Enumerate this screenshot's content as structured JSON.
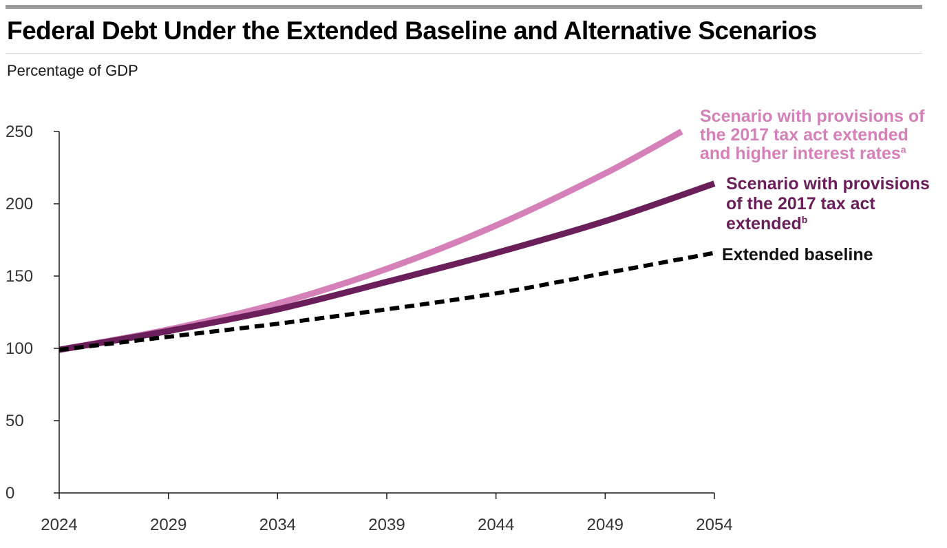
{
  "title": "Federal Debt Under the Extended Baseline and Alternative Scenarios",
  "subtitle": "Percentage of GDP",
  "chart_data": {
    "type": "line",
    "title": "Federal Debt Under the Extended Baseline and Alternative Scenarios",
    "ylabel": "Percentage of GDP",
    "xlabel": "",
    "x": [
      2024,
      2029,
      2034,
      2039,
      2044,
      2049,
      2054
    ],
    "xlim": [
      2024,
      2054
    ],
    "ylim": [
      0,
      250
    ],
    "x_ticks": [
      "2024",
      "2029",
      "2034",
      "2039",
      "2044",
      "2049",
      "2054"
    ],
    "y_ticks": [
      "0",
      "50",
      "100",
      "150",
      "200",
      "250"
    ],
    "grid": false,
    "legend": "direct labels at line ends",
    "series": [
      {
        "name": "Scenario with provisions of the 2017 tax act extended and higher interest rates",
        "label_lines": [
          "Scenario with provisions of",
          "the 2017 tax act extended",
          "and higher interest rates"
        ],
        "footnote": "a",
        "color": "#d580b8",
        "style": "solid",
        "x": [
          2024,
          2029,
          2034,
          2039,
          2044,
          2049,
          2052.5
        ],
        "values": [
          99,
          113,
          131,
          155,
          185,
          221,
          250
        ]
      },
      {
        "name": "Scenario with provisions of the 2017 tax act extended",
        "label_lines": [
          "Scenario with provisions",
          "of the 2017 tax act",
          "extended"
        ],
        "footnote": "b",
        "color": "#6b1f5a",
        "style": "solid",
        "x": [
          2024,
          2029,
          2034,
          2039,
          2044,
          2049,
          2054
        ],
        "values": [
          99,
          112,
          127,
          146,
          166,
          188,
          214
        ]
      },
      {
        "name": "Extended baseline",
        "label_lines": [
          "Extended baseline"
        ],
        "footnote": "",
        "color": "#000000",
        "style": "dashed",
        "x": [
          2024,
          2029,
          2034,
          2039,
          2044,
          2049,
          2054
        ],
        "values": [
          99,
          108,
          117,
          127,
          138,
          152,
          166
        ]
      }
    ]
  }
}
